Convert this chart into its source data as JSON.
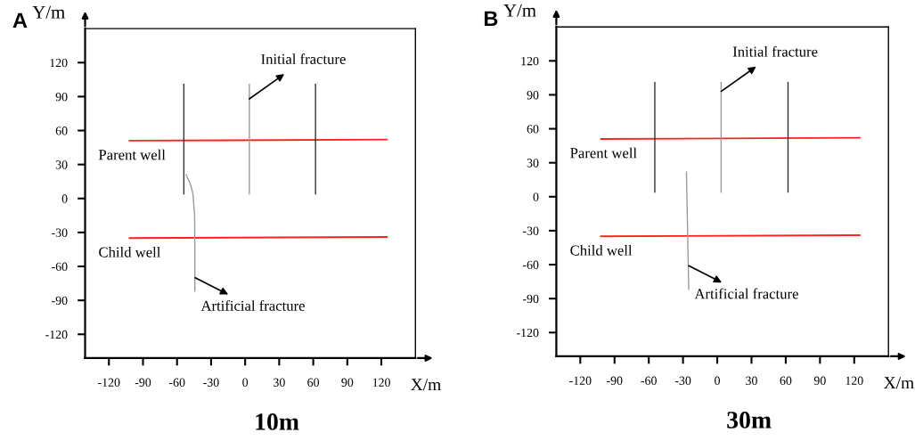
{
  "chart_data": [
    {
      "type": "line",
      "title": "10m",
      "xlabel": "X/m",
      "ylabel": "Y/m",
      "xlim": [
        -141,
        150
      ],
      "ylim": [
        -141,
        150
      ],
      "xticks": [
        -120,
        -90,
        -60,
        -30,
        0,
        30,
        60,
        90,
        120
      ],
      "yticks": [
        -120,
        -90,
        -60,
        -30,
        0,
        30,
        60,
        90,
        120
      ],
      "grid": false,
      "legend": false,
      "marker": "none",
      "line_style": "solid",
      "annotations": [
        "A",
        {
          "text": "Initial fracture",
          "x": 3.7,
          "y": 88
        },
        {
          "text": "Artificial fracture",
          "x": -44,
          "y": -70
        }
      ],
      "series": [
        {
          "name": "Parent well",
          "color": "#ff2020",
          "x": [
            -102,
            125
          ],
          "values": [
            51,
            52
          ]
        },
        {
          "name": "Child well",
          "color": "#ff2020",
          "x": [
            -102,
            125
          ],
          "values": [
            -35,
            -34
          ]
        },
        {
          "color": "#333333",
          "x": [
            -54,
            -54
          ],
          "values": [
            101,
            4
          ]
        },
        {
          "color": "#999999",
          "x": [
            3.7,
            3.7
          ],
          "values": [
            101,
            4
          ]
        },
        {
          "color": "#333333",
          "x": [
            62,
            62
          ],
          "values": [
            101,
            4
          ]
        },
        {
          "color": "#999999",
          "x": [
            -52,
            -48,
            -46,
            -44.5,
            -44.3,
            -44.3
          ],
          "values": [
            21,
            12,
            4,
            -15,
            -40,
            -82
          ]
        }
      ]
    },
    {
      "type": "line",
      "title": "30m",
      "xlabel": "X/m",
      "ylabel": "Y/m",
      "xlim": [
        -141,
        150
      ],
      "ylim": [
        -141,
        150
      ],
      "xticks": [
        -120,
        -90,
        -60,
        -30,
        0,
        30,
        60,
        90,
        120
      ],
      "yticks": [
        -120,
        -90,
        -60,
        -30,
        0,
        30,
        60,
        90,
        120
      ],
      "grid": false,
      "legend": false,
      "marker": "none",
      "line_style": "solid",
      "annotations": [
        "B",
        {
          "text": "Initial fracture",
          "x": 3.4,
          "y": 93
        },
        {
          "text": "Artificial fracture",
          "x": -25,
          "y": -61
        }
      ],
      "series": [
        {
          "name": "Parent well",
          "color": "#ff2020",
          "x": [
            -102,
            125
          ],
          "values": [
            51,
            52
          ]
        },
        {
          "name": "Child well",
          "color": "#ff2020",
          "x": [
            -102,
            125
          ],
          "values": [
            -35,
            -34
          ]
        },
        {
          "color": "#333333",
          "x": [
            -54.7,
            -54.7
          ],
          "values": [
            101,
            4
          ]
        },
        {
          "color": "#999999",
          "x": [
            3.4,
            3.4
          ],
          "values": [
            101,
            4
          ]
        },
        {
          "color": "#333333",
          "x": [
            62,
            62
          ],
          "values": [
            101,
            4
          ]
        },
        {
          "color": "#999999",
          "x": [
            -27,
            -26,
            -25
          ],
          "values": [
            22,
            -30,
            -82
          ]
        }
      ]
    }
  ]
}
